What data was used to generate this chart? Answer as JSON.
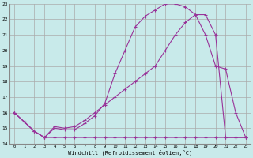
{
  "xlabel": "Windchill (Refroidissement éolien,°C)",
  "background_color": "#c8eaea",
  "grid_color": "#aaaaaa",
  "line_color": "#993399",
  "xlim": [
    -0.5,
    23.5
  ],
  "ylim": [
    14,
    23
  ],
  "yticks": [
    14,
    15,
    16,
    17,
    18,
    19,
    20,
    21,
    22,
    23
  ],
  "xticks": [
    0,
    1,
    2,
    3,
    4,
    5,
    6,
    7,
    8,
    9,
    10,
    11,
    12,
    13,
    14,
    15,
    16,
    17,
    18,
    19,
    20,
    21,
    22,
    23
  ],
  "line1_x": [
    0,
    1,
    2,
    3,
    4,
    5,
    6,
    7,
    8,
    9,
    10,
    11,
    12,
    13,
    14,
    15,
    16,
    17,
    18,
    19,
    20,
    21,
    22,
    23
  ],
  "line1_y": [
    16.0,
    15.4,
    14.8,
    14.4,
    15.0,
    14.9,
    14.9,
    15.3,
    15.8,
    16.6,
    18.5,
    20.0,
    21.5,
    22.2,
    22.6,
    23.0,
    23.0,
    22.8,
    22.3,
    21.0,
    19.0,
    18.8,
    16.0,
    14.4
  ],
  "line2_x": [
    0,
    1,
    2,
    3,
    4,
    5,
    6,
    7,
    8,
    9,
    10,
    11,
    12,
    13,
    14,
    15,
    16,
    17,
    18,
    19,
    20,
    21,
    22,
    23
  ],
  "line2_y": [
    16.0,
    15.4,
    14.8,
    14.4,
    15.1,
    15.0,
    15.1,
    15.5,
    16.0,
    16.5,
    17.0,
    17.5,
    18.0,
    18.5,
    19.0,
    20.0,
    21.0,
    21.8,
    22.3,
    22.3,
    21.0,
    14.4,
    14.4,
    14.4
  ],
  "line3_x": [
    0,
    1,
    2,
    3,
    4,
    5,
    6,
    7,
    8,
    9,
    10,
    11,
    12,
    13,
    14,
    15,
    16,
    17,
    18,
    19,
    20,
    21,
    22,
    23
  ],
  "line3_y": [
    16.0,
    15.4,
    14.8,
    14.4,
    14.4,
    14.4,
    14.4,
    14.4,
    14.4,
    14.4,
    14.4,
    14.4,
    14.4,
    14.4,
    14.4,
    14.4,
    14.4,
    14.4,
    14.4,
    14.4,
    14.4,
    14.4,
    14.4,
    14.4
  ]
}
